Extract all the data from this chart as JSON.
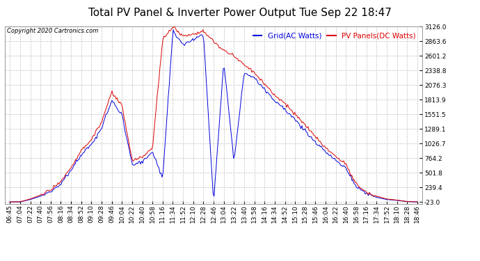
{
  "title": "Total PV Panel & Inverter Power Output Tue Sep 22 18:47",
  "copyright": "Copyright 2020 Cartronics.com",
  "legend_blue": "Grid(AC Watts)",
  "legend_red": "PV Panels(DC Watts)",
  "y_ticks": [
    3126.0,
    2863.6,
    2601.2,
    2338.8,
    2076.3,
    1813.9,
    1551.5,
    1289.1,
    1026.7,
    764.2,
    501.8,
    239.4,
    -23.0
  ],
  "y_min": -23.0,
  "y_max": 3126.0,
  "background_color": "#ffffff",
  "grid_color": "#c0c0c0",
  "blue_color": "#0000dd",
  "red_color": "#dd0000",
  "title_fontsize": 11,
  "tick_fontsize": 6.5,
  "x_labels": [
    "06:45",
    "07:04",
    "07:22",
    "07:40",
    "07:56",
    "08:16",
    "08:34",
    "08:52",
    "09:10",
    "09:28",
    "09:46",
    "10:04",
    "10:22",
    "10:40",
    "10:58",
    "11:16",
    "11:34",
    "11:52",
    "12:10",
    "12:28",
    "12:46",
    "13:04",
    "13:22",
    "13:40",
    "13:58",
    "14:16",
    "14:34",
    "14:52",
    "15:10",
    "15:28",
    "15:46",
    "16:04",
    "16:22",
    "16:40",
    "16:58",
    "17:16",
    "17:34",
    "17:52",
    "18:10",
    "18:28",
    "18:46"
  ]
}
